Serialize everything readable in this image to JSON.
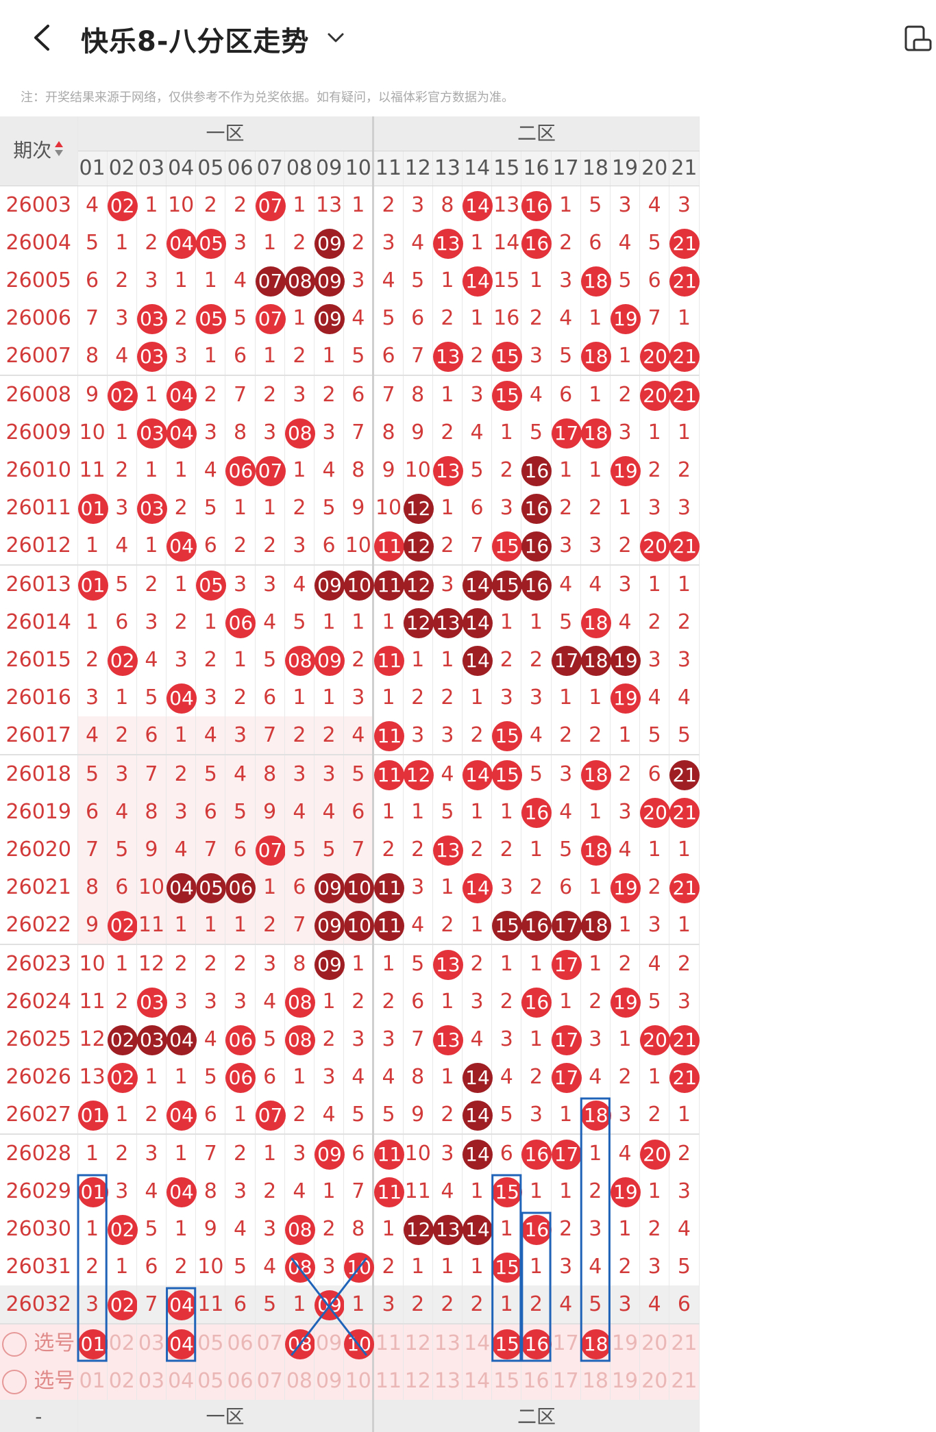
{
  "header": {
    "title": "快乐8-八分区走势",
    "back_icon": "chevron-left-icon",
    "dropdown_icon": "chevron-down-icon",
    "corner_icon": "phone-rotate-icon"
  },
  "notice": "注：开奖结果来源于网络，仅供参考不作为兑奖依据。如有疑问，以福体彩官方数据为准。",
  "table": {
    "label_header": "期次",
    "zone_labels": [
      "一区",
      "二区"
    ],
    "col_headers": [
      "01",
      "02",
      "03",
      "04",
      "05",
      "06",
      "07",
      "08",
      "09",
      "10",
      "11",
      "12",
      "13",
      "14",
      "15",
      "16",
      "17",
      "18",
      "19",
      "20",
      "21"
    ],
    "rows": [
      {
        "issue": "26003",
        "cells": [
          "4",
          "02",
          "1",
          "10",
          "2",
          "2",
          "07",
          "1",
          "13",
          "1",
          "2",
          "3",
          "8",
          "14",
          "13",
          "16",
          "1",
          "5",
          "3",
          "4",
          "3"
        ],
        "hits": [
          2,
          7,
          14,
          16
        ],
        "dhits": []
      },
      {
        "issue": "26004",
        "cells": [
          "5",
          "1",
          "2",
          "04",
          "05",
          "3",
          "1",
          "2",
          "09",
          "2",
          "3",
          "4",
          "13",
          "1",
          "14",
          "16",
          "2",
          "6",
          "4",
          "5",
          "21"
        ],
        "hits": [
          4,
          5,
          13,
          16,
          21
        ],
        "dhits": [
          9
        ]
      },
      {
        "issue": "26005",
        "cells": [
          "6",
          "2",
          "3",
          "1",
          "1",
          "4",
          "07",
          "08",
          "09",
          "3",
          "4",
          "5",
          "1",
          "14",
          "15",
          "1",
          "3",
          "18",
          "5",
          "6",
          "21"
        ],
        "hits": [
          14,
          18,
          21
        ],
        "dhits": [
          7,
          8,
          9
        ]
      },
      {
        "issue": "26006",
        "cells": [
          "7",
          "3",
          "03",
          "2",
          "05",
          "5",
          "07",
          "1",
          "09",
          "4",
          "5",
          "6",
          "2",
          "1",
          "16",
          "2",
          "4",
          "1",
          "19",
          "7",
          "1"
        ],
        "hits": [
          3,
          5,
          7,
          19
        ],
        "dhits": [
          9
        ]
      },
      {
        "issue": "26007",
        "cells": [
          "8",
          "4",
          "03",
          "3",
          "1",
          "6",
          "1",
          "2",
          "1",
          "5",
          "6",
          "7",
          "13",
          "2",
          "15",
          "3",
          "5",
          "18",
          "1",
          "20",
          "21"
        ],
        "hits": [
          3,
          13,
          15,
          18,
          20,
          21
        ],
        "dhits": []
      },
      {
        "issue": "26008",
        "cells": [
          "9",
          "02",
          "1",
          "04",
          "2",
          "7",
          "2",
          "3",
          "2",
          "6",
          "7",
          "8",
          "1",
          "3",
          "15",
          "4",
          "6",
          "1",
          "2",
          "20",
          "21"
        ],
        "hits": [
          2,
          4,
          15,
          20,
          21
        ],
        "dhits": []
      },
      {
        "issue": "26009",
        "cells": [
          "10",
          "1",
          "03",
          "04",
          "3",
          "8",
          "3",
          "08",
          "3",
          "7",
          "8",
          "9",
          "2",
          "4",
          "1",
          "5",
          "17",
          "18",
          "3",
          "1",
          "1"
        ],
        "hits": [
          3,
          4,
          8,
          17,
          18
        ],
        "dhits": []
      },
      {
        "issue": "26010",
        "cells": [
          "11",
          "2",
          "1",
          "1",
          "4",
          "06",
          "07",
          "1",
          "4",
          "8",
          "9",
          "10",
          "13",
          "5",
          "2",
          "16",
          "1",
          "1",
          "19",
          "2",
          "2"
        ],
        "hits": [
          6,
          7,
          13,
          19
        ],
        "dhits": [
          16
        ]
      },
      {
        "issue": "26011",
        "cells": [
          "01",
          "3",
          "03",
          "2",
          "5",
          "1",
          "1",
          "2",
          "5",
          "9",
          "10",
          "12",
          "1",
          "6",
          "3",
          "16",
          "2",
          "2",
          "1",
          "3",
          "3"
        ],
        "hits": [
          1,
          3
        ],
        "dhits": [
          12,
          16
        ]
      },
      {
        "issue": "26012",
        "cells": [
          "1",
          "4",
          "1",
          "04",
          "6",
          "2",
          "2",
          "3",
          "6",
          "10",
          "11",
          "12",
          "2",
          "7",
          "15",
          "16",
          "3",
          "3",
          "2",
          "20",
          "21"
        ],
        "hits": [
          4,
          11,
          15,
          20,
          21
        ],
        "dhits": [
          12,
          16
        ]
      },
      {
        "issue": "26013",
        "cells": [
          "01",
          "5",
          "2",
          "1",
          "05",
          "3",
          "3",
          "4",
          "09",
          "10",
          "11",
          "12",
          "3",
          "14",
          "15",
          "16",
          "4",
          "4",
          "3",
          "1",
          "1"
        ],
        "hits": [
          1,
          5
        ],
        "dhits": [
          9,
          10,
          11,
          12,
          14,
          15,
          16
        ]
      },
      {
        "issue": "26014",
        "cells": [
          "1",
          "6",
          "3",
          "2",
          "1",
          "06",
          "4",
          "5",
          "1",
          "1",
          "1",
          "12",
          "13",
          "14",
          "1",
          "1",
          "5",
          "18",
          "4",
          "2",
          "2"
        ],
        "hits": [
          6,
          18
        ],
        "dhits": [
          12,
          13,
          14
        ]
      },
      {
        "issue": "26015",
        "cells": [
          "2",
          "02",
          "4",
          "3",
          "2",
          "1",
          "5",
          "08",
          "09",
          "2",
          "11",
          "1",
          "1",
          "14",
          "2",
          "2",
          "17",
          "18",
          "19",
          "3",
          "3"
        ],
        "hits": [
          2,
          8,
          9,
          11
        ],
        "dhits": [
          14,
          17,
          18,
          19
        ]
      },
      {
        "issue": "26016",
        "cells": [
          "3",
          "1",
          "5",
          "04",
          "3",
          "2",
          "6",
          "1",
          "1",
          "3",
          "1",
          "2",
          "2",
          "1",
          "3",
          "3",
          "1",
          "1",
          "19",
          "4",
          "4"
        ],
        "hits": [
          4,
          19
        ],
        "dhits": []
      },
      {
        "issue": "26017",
        "cells": [
          "4",
          "2",
          "6",
          "1",
          "4",
          "3",
          "7",
          "2",
          "2",
          "4",
          "11",
          "3",
          "3",
          "2",
          "15",
          "4",
          "2",
          "2",
          "1",
          "5",
          "5"
        ],
        "hits": [
          11,
          15
        ],
        "dhits": []
      },
      {
        "issue": "26018",
        "cells": [
          "5",
          "3",
          "7",
          "2",
          "5",
          "4",
          "8",
          "3",
          "3",
          "5",
          "11",
          "12",
          "4",
          "14",
          "15",
          "5",
          "3",
          "18",
          "2",
          "6",
          "21"
        ],
        "hits": [
          11,
          12,
          14,
          15,
          18
        ],
        "dhits": [
          21
        ]
      },
      {
        "issue": "26019",
        "cells": [
          "6",
          "4",
          "8",
          "3",
          "6",
          "5",
          "9",
          "4",
          "4",
          "6",
          "1",
          "1",
          "5",
          "1",
          "1",
          "16",
          "4",
          "1",
          "3",
          "20",
          "21"
        ],
        "hits": [
          16,
          20,
          21
        ],
        "dhits": []
      },
      {
        "issue": "26020",
        "cells": [
          "7",
          "5",
          "9",
          "4",
          "7",
          "6",
          "07",
          "5",
          "5",
          "7",
          "2",
          "2",
          "13",
          "2",
          "2",
          "1",
          "5",
          "18",
          "4",
          "1",
          "1"
        ],
        "hits": [
          7,
          13,
          18
        ],
        "dhits": []
      },
      {
        "issue": "26021",
        "cells": [
          "8",
          "6",
          "10",
          "04",
          "05",
          "06",
          "1",
          "6",
          "09",
          "10",
          "11",
          "3",
          "1",
          "14",
          "3",
          "2",
          "6",
          "1",
          "19",
          "2",
          "21"
        ],
        "hits": [
          14,
          19,
          21
        ],
        "dhits": [
          4,
          5,
          6,
          9,
          10,
          11
        ]
      },
      {
        "issue": "26022",
        "cells": [
          "9",
          "02",
          "11",
          "1",
          "1",
          "1",
          "2",
          "7",
          "09",
          "10",
          "11",
          "4",
          "2",
          "1",
          "15",
          "16",
          "17",
          "18",
          "1",
          "3",
          "1"
        ],
        "hits": [
          2
        ],
        "dhits": [
          9,
          10,
          11,
          15,
          16,
          17,
          18
        ]
      },
      {
        "issue": "26023",
        "cells": [
          "10",
          "1",
          "12",
          "2",
          "2",
          "2",
          "3",
          "8",
          "09",
          "1",
          "1",
          "5",
          "13",
          "2",
          "1",
          "1",
          "17",
          "1",
          "2",
          "4",
          "2"
        ],
        "hits": [
          13,
          17
        ],
        "dhits": [
          9
        ]
      },
      {
        "issue": "26024",
        "cells": [
          "11",
          "2",
          "03",
          "3",
          "3",
          "3",
          "4",
          "08",
          "1",
          "2",
          "2",
          "6",
          "1",
          "3",
          "2",
          "16",
          "1",
          "2",
          "19",
          "5",
          "3"
        ],
        "hits": [
          3,
          8,
          16,
          19
        ],
        "dhits": []
      },
      {
        "issue": "26025",
        "cells": [
          "12",
          "02",
          "03",
          "04",
          "4",
          "06",
          "5",
          "08",
          "2",
          "3",
          "3",
          "7",
          "13",
          "4",
          "3",
          "1",
          "17",
          "3",
          "1",
          "20",
          "21"
        ],
        "hits": [
          6,
          8,
          13,
          17,
          20,
          21
        ],
        "dhits": [
          2,
          3,
          4
        ]
      },
      {
        "issue": "26026",
        "cells": [
          "13",
          "02",
          "1",
          "1",
          "5",
          "06",
          "6",
          "1",
          "3",
          "4",
          "4",
          "8",
          "1",
          "14",
          "4",
          "2",
          "17",
          "4",
          "2",
          "1",
          "21"
        ],
        "hits": [
          2,
          6,
          17,
          21
        ],
        "dhits": [
          14
        ]
      },
      {
        "issue": "26027",
        "cells": [
          "01",
          "1",
          "2",
          "04",
          "6",
          "1",
          "07",
          "2",
          "4",
          "5",
          "5",
          "9",
          "2",
          "14",
          "5",
          "3",
          "1",
          "18",
          "3",
          "2",
          "1"
        ],
        "hits": [
          1,
          4,
          7,
          18
        ],
        "dhits": [
          14
        ]
      },
      {
        "issue": "26028",
        "cells": [
          "1",
          "2",
          "3",
          "1",
          "7",
          "2",
          "1",
          "3",
          "09",
          "6",
          "11",
          "10",
          "3",
          "14",
          "6",
          "16",
          "17",
          "1",
          "4",
          "20",
          "2"
        ],
        "hits": [
          9,
          11,
          16,
          17,
          20
        ],
        "dhits": [
          14
        ]
      },
      {
        "issue": "26029",
        "cells": [
          "01",
          "3",
          "4",
          "04",
          "8",
          "3",
          "2",
          "4",
          "1",
          "7",
          "11",
          "11",
          "4",
          "1",
          "15",
          "1",
          "1",
          "2",
          "19",
          "1",
          "3"
        ],
        "hits": [
          1,
          4,
          11,
          15,
          19
        ],
        "dhits": []
      },
      {
        "issue": "26030",
        "cells": [
          "1",
          "02",
          "5",
          "1",
          "9",
          "4",
          "3",
          "08",
          "2",
          "8",
          "1",
          "12",
          "13",
          "14",
          "1",
          "16",
          "2",
          "3",
          "1",
          "2",
          "4"
        ],
        "hits": [
          2,
          8,
          16
        ],
        "dhits": [
          12,
          13,
          14
        ]
      },
      {
        "issue": "26031",
        "cells": [
          "2",
          "1",
          "6",
          "2",
          "10",
          "5",
          "4",
          "08",
          "3",
          "10",
          "2",
          "1",
          "1",
          "1",
          "15",
          "1",
          "3",
          "4",
          "2",
          "3",
          "5"
        ],
        "hits": [
          8,
          10,
          15
        ],
        "dhits": []
      },
      {
        "issue": "26032",
        "cells": [
          "3",
          "02",
          "7",
          "04",
          "11",
          "6",
          "5",
          "1",
          "09",
          "1",
          "3",
          "2",
          "2",
          "2",
          "1",
          "2",
          "4",
          "5",
          "3",
          "4",
          "6"
        ],
        "hits": [
          2,
          4,
          9
        ],
        "dhits": []
      }
    ],
    "select_rows": [
      {
        "label": "选号",
        "cells": [
          "01",
          "02",
          "03",
          "04",
          "05",
          "06",
          "07",
          "08",
          "09",
          "10",
          "11",
          "12",
          "13",
          "14",
          "15",
          "16",
          "17",
          "18",
          "19",
          "20",
          "21"
        ],
        "hits": [
          1,
          4,
          8,
          10,
          15,
          16,
          18
        ]
      },
      {
        "label": "选号",
        "cells": [
          "01",
          "02",
          "03",
          "04",
          "05",
          "06",
          "07",
          "08",
          "09",
          "10",
          "11",
          "12",
          "13",
          "14",
          "15",
          "16",
          "17",
          "18",
          "19",
          "20",
          "21"
        ],
        "hits": []
      }
    ],
    "footer_label": "-"
  },
  "colors": {
    "ball_red": "#e3323a",
    "ball_dark": "#9e1e23",
    "number_red": "#d23a3a",
    "annotation_blue": "#1f63b8"
  }
}
